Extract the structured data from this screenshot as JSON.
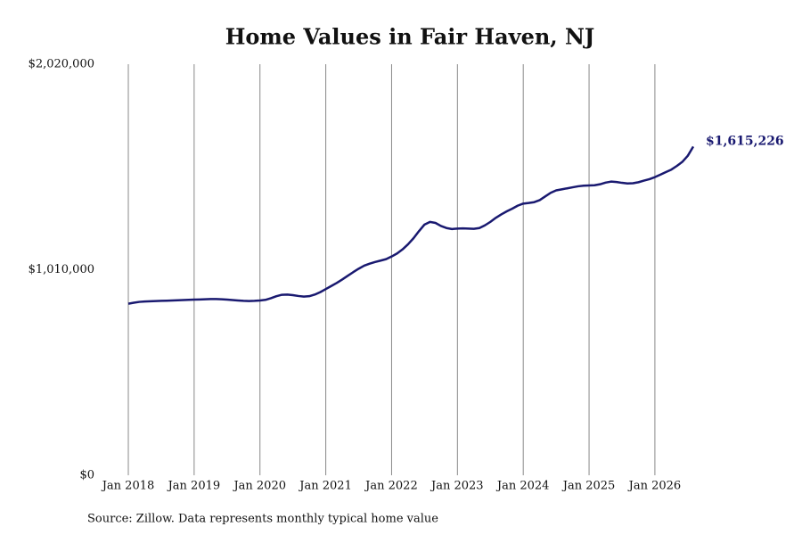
{
  "chart_data": {
    "type": "line",
    "title": "Home Values in Fair Haven, NJ",
    "source": "Source: Zillow. Data represents monthly typical home value",
    "color": "#191970",
    "grid": true,
    "x": [
      "2018-01",
      "2018-02",
      "2018-03",
      "2018-04",
      "2018-05",
      "2018-06",
      "2018-07",
      "2018-08",
      "2018-09",
      "2018-10",
      "2018-11",
      "2018-12",
      "2019-01",
      "2019-02",
      "2019-03",
      "2019-04",
      "2019-05",
      "2019-06",
      "2019-07",
      "2019-08",
      "2019-09",
      "2019-10",
      "2019-11",
      "2019-12",
      "2020-01",
      "2020-02",
      "2020-03",
      "2020-04",
      "2020-05",
      "2020-06",
      "2020-07",
      "2020-08",
      "2020-09",
      "2020-10",
      "2020-11",
      "2020-12",
      "2021-01",
      "2021-02",
      "2021-03",
      "2021-04",
      "2021-05",
      "2021-06",
      "2021-07",
      "2021-08",
      "2021-09",
      "2021-10",
      "2021-11",
      "2021-12",
      "2022-01",
      "2022-02",
      "2022-03",
      "2022-04",
      "2022-05",
      "2022-06",
      "2022-07",
      "2022-08",
      "2022-09",
      "2022-10",
      "2022-11",
      "2022-12",
      "2023-01",
      "2023-02",
      "2023-03",
      "2023-04",
      "2023-05",
      "2023-06",
      "2023-07",
      "2023-08",
      "2023-09",
      "2023-10",
      "2023-11",
      "2023-12",
      "2024-01",
      "2024-02",
      "2024-03",
      "2024-04",
      "2024-05",
      "2024-06",
      "2024-07",
      "2024-08",
      "2024-09",
      "2024-10",
      "2024-11",
      "2024-12",
      "2025-01",
      "2025-02",
      "2025-03",
      "2025-04",
      "2025-05",
      "2025-06",
      "2025-07",
      "2025-08",
      "2025-09",
      "2025-10",
      "2025-11",
      "2025-12",
      "2026-01",
      "2026-02",
      "2026-03",
      "2026-04",
      "2026-05",
      "2026-06",
      "2026-07",
      "2026-08"
    ],
    "values": [
      843000,
      848000,
      852000,
      854000,
      855000,
      856000,
      857000,
      858000,
      859000,
      860000,
      861000,
      862000,
      863000,
      864000,
      865000,
      866000,
      866000,
      865000,
      863000,
      861000,
      859000,
      857000,
      856000,
      857000,
      859000,
      862000,
      870000,
      880000,
      887000,
      888000,
      885000,
      881000,
      878000,
      880000,
      888000,
      900000,
      915000,
      930000,
      945000,
      962000,
      980000,
      998000,
      1015000,
      1030000,
      1040000,
      1048000,
      1055000,
      1062000,
      1075000,
      1090000,
      1110000,
      1135000,
      1165000,
      1200000,
      1232000,
      1245000,
      1240000,
      1225000,
      1215000,
      1210000,
      1212000,
      1213000,
      1212000,
      1211000,
      1215000,
      1228000,
      1245000,
      1265000,
      1282000,
      1297000,
      1310000,
      1325000,
      1335000,
      1338000,
      1342000,
      1352000,
      1370000,
      1388000,
      1400000,
      1405000,
      1410000,
      1415000,
      1420000,
      1423000,
      1424000,
      1425000,
      1430000,
      1438000,
      1443000,
      1441000,
      1437000,
      1434000,
      1435000,
      1440000,
      1448000,
      1455000,
      1465000,
      1477000,
      1490000,
      1502000,
      1520000,
      1540000,
      1570000,
      1615226
    ],
    "value_labels": [
      null,
      null,
      null,
      null,
      null,
      null,
      null,
      null,
      null,
      null,
      null,
      null,
      null,
      null,
      null,
      null,
      null,
      null,
      null,
      null,
      null,
      null,
      null,
      null,
      null,
      null,
      null,
      null,
      null,
      null,
      null,
      null,
      null,
      null,
      null,
      null,
      null,
      null,
      null,
      null,
      null,
      null,
      null,
      null,
      null,
      null,
      null,
      null,
      null,
      null,
      null,
      null,
      null,
      null,
      null,
      null,
      null,
      null,
      null,
      null,
      null,
      null,
      null,
      null,
      null,
      null,
      null,
      null,
      null,
      null,
      null,
      null,
      null,
      null,
      null,
      null,
      null,
      null,
      null,
      null,
      null,
      null,
      null,
      null,
      null,
      null,
      null,
      null,
      null,
      null,
      null,
      null,
      null,
      null,
      null,
      null,
      null,
      null,
      null,
      null,
      null,
      null,
      null,
      "$1,615,226"
    ],
    "xlim": [
      "2018-01",
      "2026-08"
    ],
    "xticks": [
      {
        "value": "2018-01",
        "label": "Jan 2018"
      },
      {
        "value": "2019-01",
        "label": "Jan 2019"
      },
      {
        "value": "2020-01",
        "label": "Jan 2020"
      },
      {
        "value": "2021-01",
        "label": "Jan 2021"
      },
      {
        "value": "2022-01",
        "label": "Jan 2022"
      },
      {
        "value": "2023-01",
        "label": "Jan 2023"
      },
      {
        "value": "2024-01",
        "label": "Jan 2024"
      },
      {
        "value": "2025-01",
        "label": "Jan 2025"
      },
      {
        "value": "2026-01",
        "label": "Jan 2026"
      }
    ],
    "ylim": [
      0,
      2020000
    ],
    "yticks": [
      {
        "value": 0,
        "label": "$0"
      },
      {
        "value": 1010000,
        "label": "$1,010,000"
      },
      {
        "value": 2020000,
        "label": "$2,020,000"
      }
    ]
  }
}
